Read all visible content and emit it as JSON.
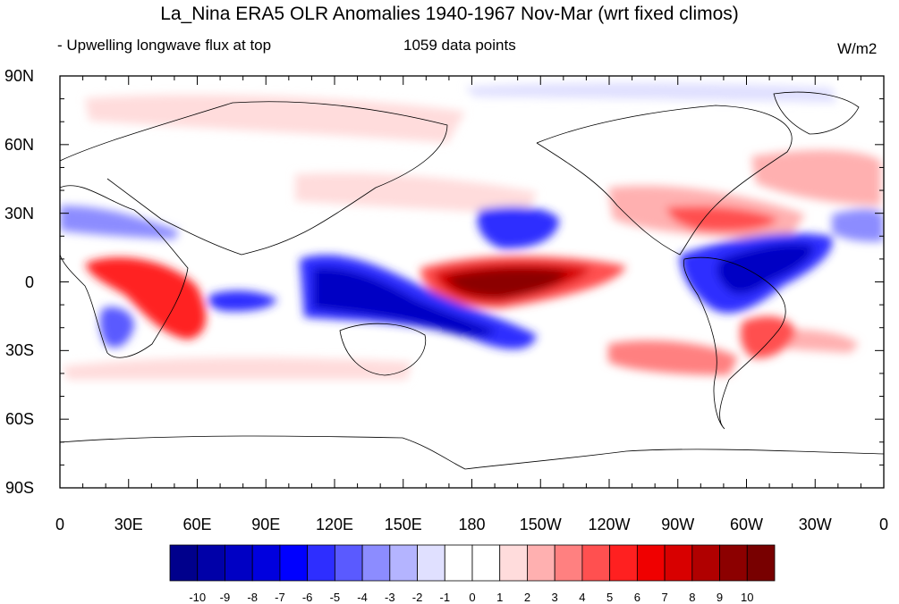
{
  "title": "La_Nina ERA5 OLR Anomalies 1940-1967 Nov-Mar (wrt fixed climos)",
  "subtitle_left": "- Upwelling longwave flux at top",
  "subtitle_center": "1059 data points",
  "units": "W/m2",
  "map": {
    "lat_ticks": [
      "90N",
      "60N",
      "30N",
      "0",
      "30S",
      "60S",
      "90S"
    ],
    "lon_ticks": [
      "0",
      "30E",
      "60E",
      "90E",
      "120E",
      "150E",
      "180",
      "150W",
      "120W",
      "90W",
      "60W",
      "30W",
      "0"
    ],
    "lat_range": [
      -90,
      90
    ],
    "lon_range": [
      0,
      360
    ],
    "projection": "cylindrical-equidistant",
    "field": "OLR anomaly",
    "icons": [
      "coastline-icon"
    ]
  },
  "colorbar": {
    "labels": [
      "-10",
      "-9",
      "-8",
      "-7",
      "-6",
      "-5",
      "-4",
      "-3",
      "-2",
      "-1",
      "0",
      "1",
      "2",
      "3",
      "4",
      "5",
      "6",
      "7",
      "8",
      "9",
      "10"
    ],
    "colors": [
      "#00008c",
      "#0000a8",
      "#0000c4",
      "#0000de",
      "#0000ff",
      "#2e2eff",
      "#5a5aff",
      "#8c8cff",
      "#b4b4ff",
      "#e0e0ff",
      "#ffffff",
      "#ffffff",
      "#ffdcdc",
      "#ffb0b0",
      "#ff8080",
      "#ff5050",
      "#ff2020",
      "#f00000",
      "#d80000",
      "#b00000",
      "#8c0000",
      "#780000"
    ]
  }
}
